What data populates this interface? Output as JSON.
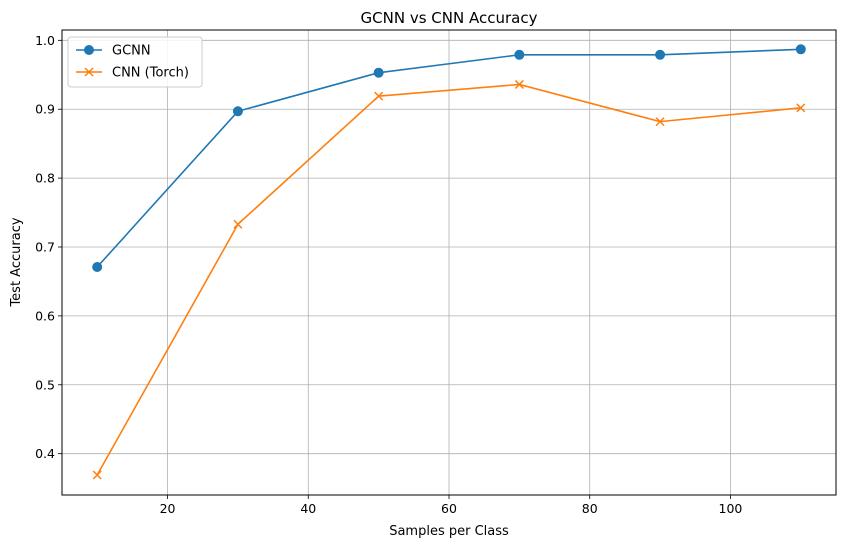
{
  "chart_data": {
    "type": "line",
    "title": "GCNN vs CNN Accuracy",
    "xlabel": "Samples per Class",
    "ylabel": "Test Accuracy",
    "xlim": [
      5,
      115
    ],
    "ylim": [
      0.34,
      1.015
    ],
    "x_ticks": [
      20,
      40,
      60,
      80,
      100
    ],
    "y_ticks": [
      0.4,
      0.5,
      0.6,
      0.7,
      0.8,
      0.9,
      1.0
    ],
    "x_tick_labels": [
      "20",
      "40",
      "60",
      "80",
      "100"
    ],
    "y_tick_labels": [
      "0.4",
      "0.5",
      "0.6",
      "0.7",
      "0.8",
      "0.9",
      "1.0"
    ],
    "grid": true,
    "legend_position": "top-left",
    "x": [
      10,
      30,
      50,
      70,
      90,
      110
    ],
    "series": [
      {
        "name": "GCNN",
        "marker": "circle",
        "color": "#1f77b4",
        "values": [
          0.671,
          0.897,
          0.953,
          0.979,
          0.979,
          0.987
        ]
      },
      {
        "name": "CNN (Torch)",
        "marker": "x",
        "color": "#ff7f0e",
        "values": [
          0.369,
          0.733,
          0.919,
          0.936,
          0.882,
          0.902
        ]
      }
    ]
  }
}
